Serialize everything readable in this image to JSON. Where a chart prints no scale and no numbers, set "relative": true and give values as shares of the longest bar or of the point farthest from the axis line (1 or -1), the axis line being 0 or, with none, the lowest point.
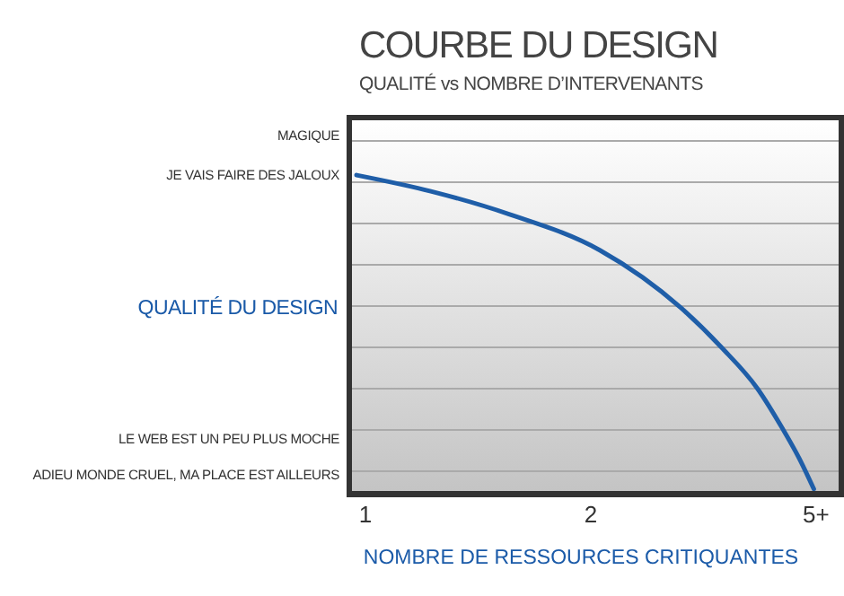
{
  "chart_data": {
    "type": "line",
    "title": "COURBE DU DESIGN",
    "subtitle": "QUALITÉ vs NOMBRE D’INTERVENANTS",
    "xlabel": "NOMBRE DE RESSOURCES CRITIQUANTES",
    "ylabel": "QUALITÉ DU DESIGN",
    "x": [
      0.96,
      1.29,
      1.64,
      2.04,
      2.4,
      2.58,
      2.74,
      2.85,
      2.93,
      2.99
    ],
    "series": [
      {
        "color": "#1f5ea8",
        "values": [
          1,
          0.949,
          0.876,
          0.763,
          0.581,
          0.456,
          0.326,
          0.201,
          0.099,
          0.009
        ]
      }
    ],
    "relative": true,
    "xlim": [
      0.94,
      3.1
    ],
    "xticks": [
      1,
      2,
      {
        "value": 3,
        "label": "5+"
      }
    ],
    "annotations": [
      "MAGIQUE",
      "JE VAIS FAIRE DES JALOUX",
      "LE WEB EST UN PEU PLUS MOCHE",
      "ADIEU MONDE CRUEL, MA PLACE EST AILLEURS"
    ],
    "grid": "y",
    "marker": "none",
    "line_style": "solid",
    "legend": false
  }
}
